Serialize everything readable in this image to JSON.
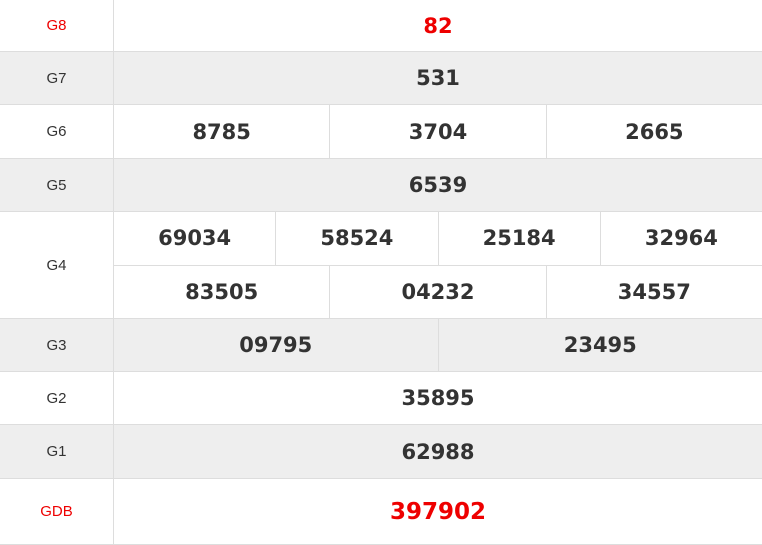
{
  "colors": {
    "special": "#ee0000",
    "text": "#333333",
    "alt_row": "#eeeeee"
  },
  "prizes": [
    {
      "label": "G8",
      "rows": [
        [
          "82"
        ]
      ]
    },
    {
      "label": "G7",
      "rows": [
        [
          "531"
        ]
      ]
    },
    {
      "label": "G6",
      "rows": [
        [
          "8785",
          "3704",
          "2665"
        ]
      ]
    },
    {
      "label": "G5",
      "rows": [
        [
          "6539"
        ]
      ]
    },
    {
      "label": "G4",
      "rows": [
        [
          "69034",
          "58524",
          "25184",
          "32964"
        ],
        [
          "83505",
          "04232",
          "34557"
        ]
      ]
    },
    {
      "label": "G3",
      "rows": [
        [
          "09795",
          "23495"
        ]
      ]
    },
    {
      "label": "G2",
      "rows": [
        [
          "35895"
        ]
      ]
    },
    {
      "label": "G1",
      "rows": [
        [
          "62988"
        ]
      ]
    },
    {
      "label": "GDB",
      "rows": [
        [
          "397902"
        ]
      ]
    }
  ]
}
